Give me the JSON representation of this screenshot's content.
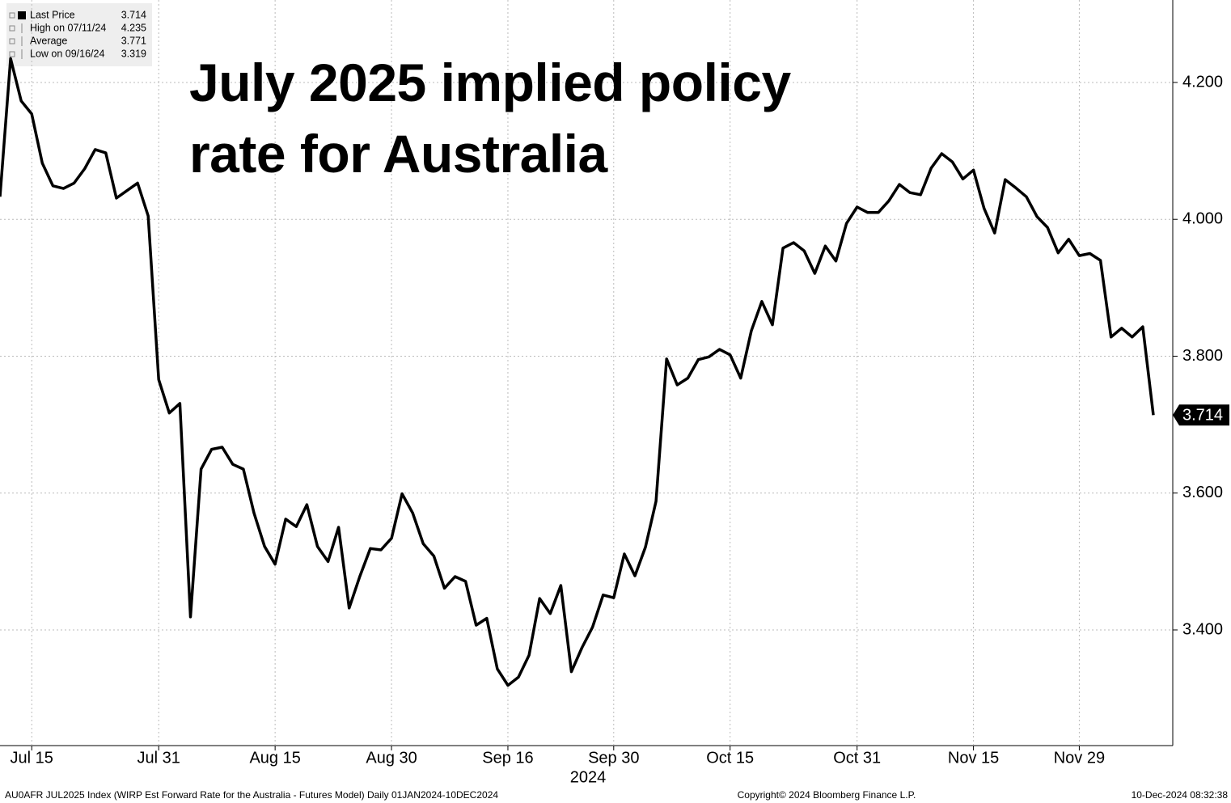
{
  "chart_data": {
    "type": "line",
    "title": "July 2025 implied policy rate for Australia",
    "x_axis_year": "2024",
    "categories": [
      null,
      null,
      null,
      "Jul 15",
      null,
      null,
      null,
      null,
      null,
      null,
      null,
      null,
      null,
      null,
      null,
      "Jul 31",
      null,
      null,
      null,
      null,
      null,
      null,
      null,
      null,
      null,
      null,
      "Aug 15",
      null,
      null,
      null,
      null,
      null,
      null,
      null,
      null,
      null,
      null,
      "Aug 30",
      null,
      null,
      null,
      null,
      null,
      null,
      null,
      null,
      null,
      null,
      "Sep 16",
      null,
      null,
      null,
      null,
      null,
      null,
      null,
      null,
      null,
      "Sep 30",
      null,
      null,
      null,
      null,
      null,
      null,
      null,
      null,
      null,
      null,
      "Oct 15",
      null,
      null,
      null,
      null,
      null,
      null,
      null,
      null,
      null,
      null,
      null,
      "Oct 31",
      null,
      null,
      null,
      null,
      null,
      null,
      null,
      null,
      null,
      null,
      "Nov 15",
      null,
      null,
      null,
      null,
      null,
      null,
      null,
      null,
      null,
      "Nov 29",
      null,
      null,
      null,
      null,
      null,
      null,
      null
    ],
    "series": [
      {
        "name": "Last Price",
        "color": "#000000",
        "values": [
          4.033,
          4.235,
          4.173,
          4.154,
          4.082,
          4.049,
          4.045,
          4.053,
          4.074,
          4.102,
          4.097,
          4.031,
          4.042,
          4.053,
          4.005,
          3.766,
          3.717,
          3.731,
          3.419,
          3.635,
          3.664,
          3.667,
          3.642,
          3.635,
          3.571,
          3.522,
          3.496,
          3.562,
          3.551,
          3.583,
          3.522,
          3.5,
          3.55,
          3.432,
          3.478,
          3.519,
          3.517,
          3.534,
          3.599,
          3.571,
          3.526,
          3.508,
          3.461,
          3.478,
          3.471,
          3.407,
          3.417,
          3.343,
          3.319,
          3.331,
          3.363,
          3.446,
          3.424,
          3.465,
          3.339,
          3.374,
          3.404,
          3.451,
          3.447,
          3.511,
          3.479,
          3.521,
          3.588,
          3.796,
          3.758,
          3.768,
          3.795,
          3.799,
          3.81,
          3.802,
          3.768,
          3.837,
          3.88,
          3.846,
          3.958,
          3.966,
          3.954,
          3.921,
          3.961,
          3.939,
          3.994,
          4.018,
          4.01,
          4.01,
          4.027,
          4.051,
          4.039,
          4.036,
          4.075,
          4.096,
          4.084,
          4.059,
          4.072,
          4.016,
          3.98,
          4.058,
          4.046,
          4.033,
          4.004,
          3.988,
          3.951,
          3.971,
          3.947,
          3.95,
          3.94,
          3.828,
          3.841,
          3.828,
          3.843,
          3.714
        ]
      }
    ],
    "legend": [
      {
        "label": "Last Price",
        "value": "3.714"
      },
      {
        "label": "High on 07/11/24",
        "value": "4.235"
      },
      {
        "label": "Average",
        "value": "3.771"
      },
      {
        "label": "Low on 09/16/24",
        "value": "3.319"
      }
    ],
    "ylim": [
      3.231,
      4.3205
    ],
    "yticks": [
      {
        "value": 3.4,
        "label": "3.400"
      },
      {
        "value": 3.6,
        "label": "3.600"
      },
      {
        "value": 3.8,
        "label": "3.800"
      },
      {
        "value": 4.0,
        "label": "4.000"
      },
      {
        "value": 4.2,
        "label": "4.200"
      }
    ],
    "grid": true,
    "footer": {
      "source": "AU0AFR JUL2025 Index (WIRP Est Forward Rate for the Australia - Futures Model)  Daily 01JAN2024-10DEC2024",
      "copyright": "Copyright© 2024 Bloomberg Finance L.P.",
      "timestamp": "10-Dec-2024 08:32:38"
    }
  }
}
